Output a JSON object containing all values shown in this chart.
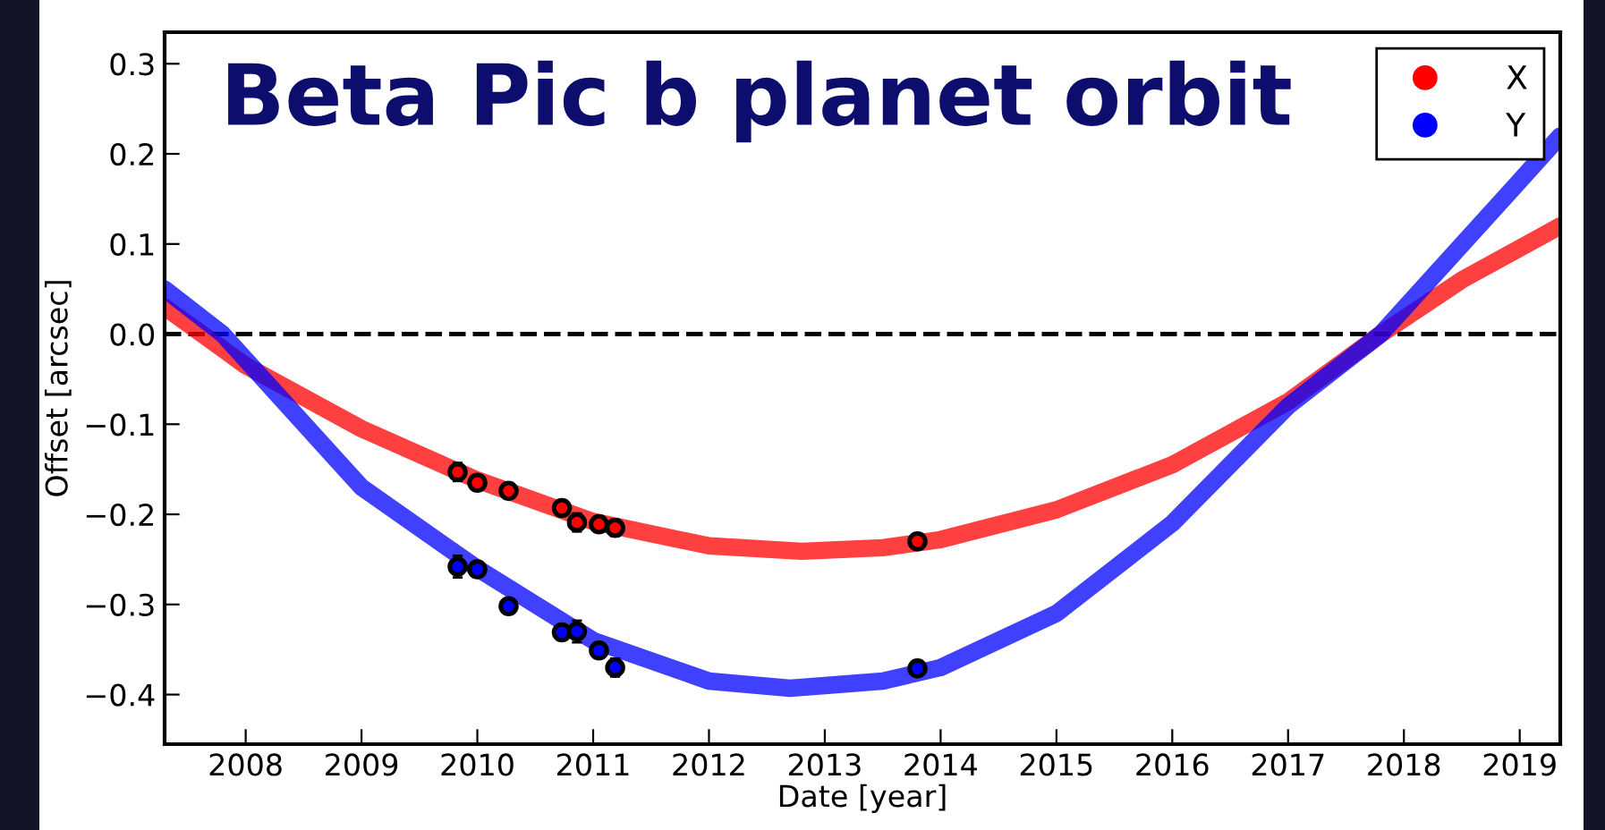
{
  "chart_data": {
    "type": "line",
    "title": "Beta Pic b planet orbit",
    "xlabel": "Date [year]",
    "ylabel": "Offset [arcsec]",
    "xlim": [
      2007.3,
      2019.35
    ],
    "xticks": [
      2008,
      2009,
      2010,
      2011,
      2012,
      2013,
      2014,
      2015,
      2016,
      2017,
      2018,
      2019
    ],
    "ylim": [
      -0.455,
      0.335
    ],
    "yticks": [
      {
        "value": -0.4,
        "label": "−0.4"
      },
      {
        "value": -0.3,
        "label": "−0.3"
      },
      {
        "value": -0.2,
        "label": "−0.2"
      },
      {
        "value": -0.1,
        "label": "−0.1"
      },
      {
        "value": 0.0,
        "label": "0.0"
      },
      0.1,
      0.2,
      0.3
    ],
    "legend": "top right",
    "grid": false,
    "ref_lines": [
      {
        "axis": "y",
        "value": 0,
        "color": "#000000",
        "line_style": "dashed"
      }
    ],
    "series": [
      {
        "name": "X",
        "color": "#ff0000",
        "x": [
          2007.3,
          2008,
          2009,
          2010,
          2011,
          2012,
          2012.8,
          2013.5,
          2014,
          2015,
          2016,
          2017,
          2017.8,
          2018.5,
          2019.35
        ],
        "values": [
          0.03,
          -0.035,
          -0.105,
          -0.162,
          -0.208,
          -0.235,
          -0.241,
          -0.237,
          -0.228,
          -0.195,
          -0.145,
          -0.075,
          0.0,
          0.06,
          0.12
        ]
      },
      {
        "name": "Y",
        "color": "#0000ff",
        "x": [
          2007.3,
          2007.8,
          2009,
          2010,
          2011,
          2012,
          2012.7,
          2013.5,
          2014,
          2015,
          2016,
          2017,
          2017.8,
          2019,
          2019.35
        ],
        "values": [
          0.05,
          0.0,
          -0.17,
          -0.26,
          -0.34,
          -0.385,
          -0.393,
          -0.385,
          -0.37,
          -0.31,
          -0.21,
          -0.08,
          0.0,
          0.17,
          0.22
        ]
      },
      {
        "color": "#ff0000",
        "type": "scatter",
        "marker": "circle",
        "x": [
          2009.83,
          2010.0,
          2010.27,
          2010.73,
          2010.86,
          2011.05,
          2011.19,
          2013.8
        ],
        "values": [
          -0.153,
          -0.165,
          -0.174,
          -0.193,
          -0.209,
          -0.211,
          -0.215,
          -0.23
        ],
        "errors": [
          0.01,
          0.006,
          0.005,
          0.008,
          0.01,
          0.006,
          0.009,
          0.004
        ]
      },
      {
        "color": "#0000ff",
        "type": "scatter",
        "marker": "circle",
        "x": [
          2009.83,
          2010.0,
          2010.27,
          2010.73,
          2010.86,
          2011.05,
          2011.19,
          2013.8
        ],
        "values": [
          -0.258,
          -0.261,
          -0.302,
          -0.331,
          -0.33,
          -0.351,
          -0.37,
          -0.371
        ],
        "errors": [
          0.012,
          0.006,
          0.005,
          0.008,
          0.012,
          0.006,
          0.01,
          0.004
        ]
      }
    ]
  }
}
